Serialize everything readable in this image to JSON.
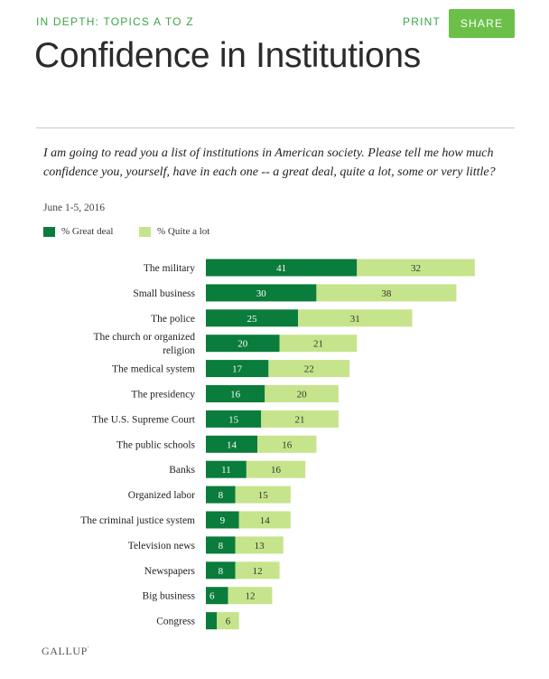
{
  "header": {
    "kicker": "IN DEPTH: TOPICS A TO Z",
    "print_label": "PRINT",
    "share_label": "SHARE",
    "title": "Confidence in Institutions"
  },
  "intro": {
    "question": "I am going to read you a list of institutions in American society. Please tell me how much confidence you, yourself, have in each one -- a great deal, quite a lot, some or very little?",
    "date": "June 1-5, 2016"
  },
  "colors": {
    "great_deal": "#0a7c3c",
    "quite_a_lot": "#c6e48b",
    "accent": "#6cc04a"
  },
  "chart_data": {
    "type": "bar",
    "orientation": "horizontal",
    "stacked": true,
    "title": "Confidence in Institutions",
    "legend_position": "top-left",
    "categories": [
      "The military",
      "Small business",
      "The police",
      "The church or organized religion",
      "The medical system",
      "The presidency",
      "The U.S. Supreme Court",
      "The public schools",
      "Banks",
      "Organized labor",
      "The criminal justice system",
      "Television news",
      "Newspapers",
      "Big business",
      "Congress"
    ],
    "series": [
      {
        "name": "% Great deal",
        "values": [
          41,
          30,
          25,
          20,
          17,
          16,
          15,
          14,
          11,
          8,
          9,
          8,
          8,
          6,
          3
        ]
      },
      {
        "name": "% Quite a lot",
        "values": [
          32,
          38,
          31,
          21,
          22,
          20,
          21,
          16,
          16,
          15,
          14,
          13,
          12,
          12,
          6
        ]
      }
    ],
    "data_labels": [
      [
        "41",
        "30",
        "25",
        "20",
        "17",
        "16",
        "15",
        "14",
        "11",
        "8",
        "9",
        "8",
        "8",
        "6",
        ""
      ],
      [
        "32",
        "38",
        "31",
        "21",
        "22",
        "20",
        "21",
        "16",
        "16",
        "15",
        "14",
        "13",
        "12",
        "12",
        "6"
      ]
    ]
  },
  "footer": {
    "source": "GALLUP",
    "mark": "'"
  }
}
